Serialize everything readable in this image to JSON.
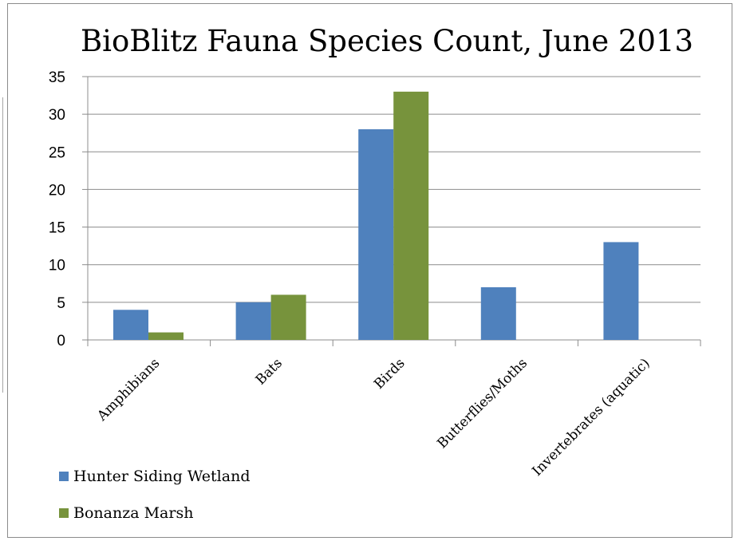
{
  "chart_data": {
    "type": "bar",
    "title": "BioBlitz Fauna Species Count, June 2013",
    "categories": [
      "Amphibians",
      "Bats",
      "Birds",
      "Butterflies/Moths",
      "Invertebrates (aquatic)"
    ],
    "series": [
      {
        "name": "Hunter Siding Wetland",
        "values": [
          4,
          5,
          28,
          7,
          13
        ],
        "color": "#4f81bd"
      },
      {
        "name": "Bonanza Marsh",
        "values": [
          1,
          6,
          33,
          null,
          null
        ],
        "color": "#77933c"
      }
    ],
    "ylim": [
      0,
      35
    ],
    "yticks": [
      0,
      5,
      10,
      15,
      20,
      25,
      30,
      35
    ],
    "grid": true,
    "legend_position": "bottom-left"
  }
}
